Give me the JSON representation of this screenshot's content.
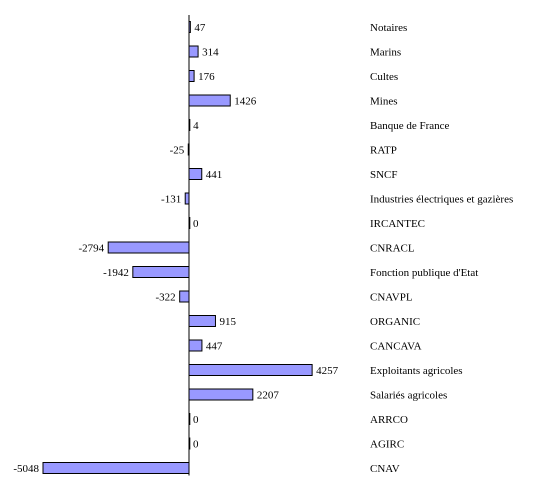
{
  "chart_data": {
    "type": "bar",
    "orientation": "horizontal",
    "categories": [
      "Notaires",
      "Marins",
      "Cultes",
      "Mines",
      "Banque de France",
      "RATP",
      "SNCF",
      "Industries électriques et gazières",
      "IRCANTEC",
      "CNRACL",
      "Fonction publique d'Etat",
      "CNAVPL",
      "ORGANIC",
      "CANCAVA",
      "Exploitants agricoles",
      "Salariés agricoles",
      "ARRCO",
      "AGIRC",
      "CNAV"
    ],
    "values": [
      47,
      314,
      176,
      1426,
      4,
      -25,
      441,
      -131,
      0,
      -2794,
      -1942,
      -322,
      915,
      447,
      4257,
      2207,
      0,
      0,
      -5048
    ],
    "value_labels": [
      "47",
      "314",
      "176",
      "1426",
      "4",
      "-25",
      "441",
      "-131",
      "0",
      "-2794",
      "-1942",
      "-322",
      "915",
      "447",
      "4257",
      "2207",
      "0",
      "0",
      "-5048"
    ],
    "xlim": [
      -5048,
      4257
    ],
    "bar_color": "#9999ff",
    "legend": "none",
    "grid": false
  }
}
